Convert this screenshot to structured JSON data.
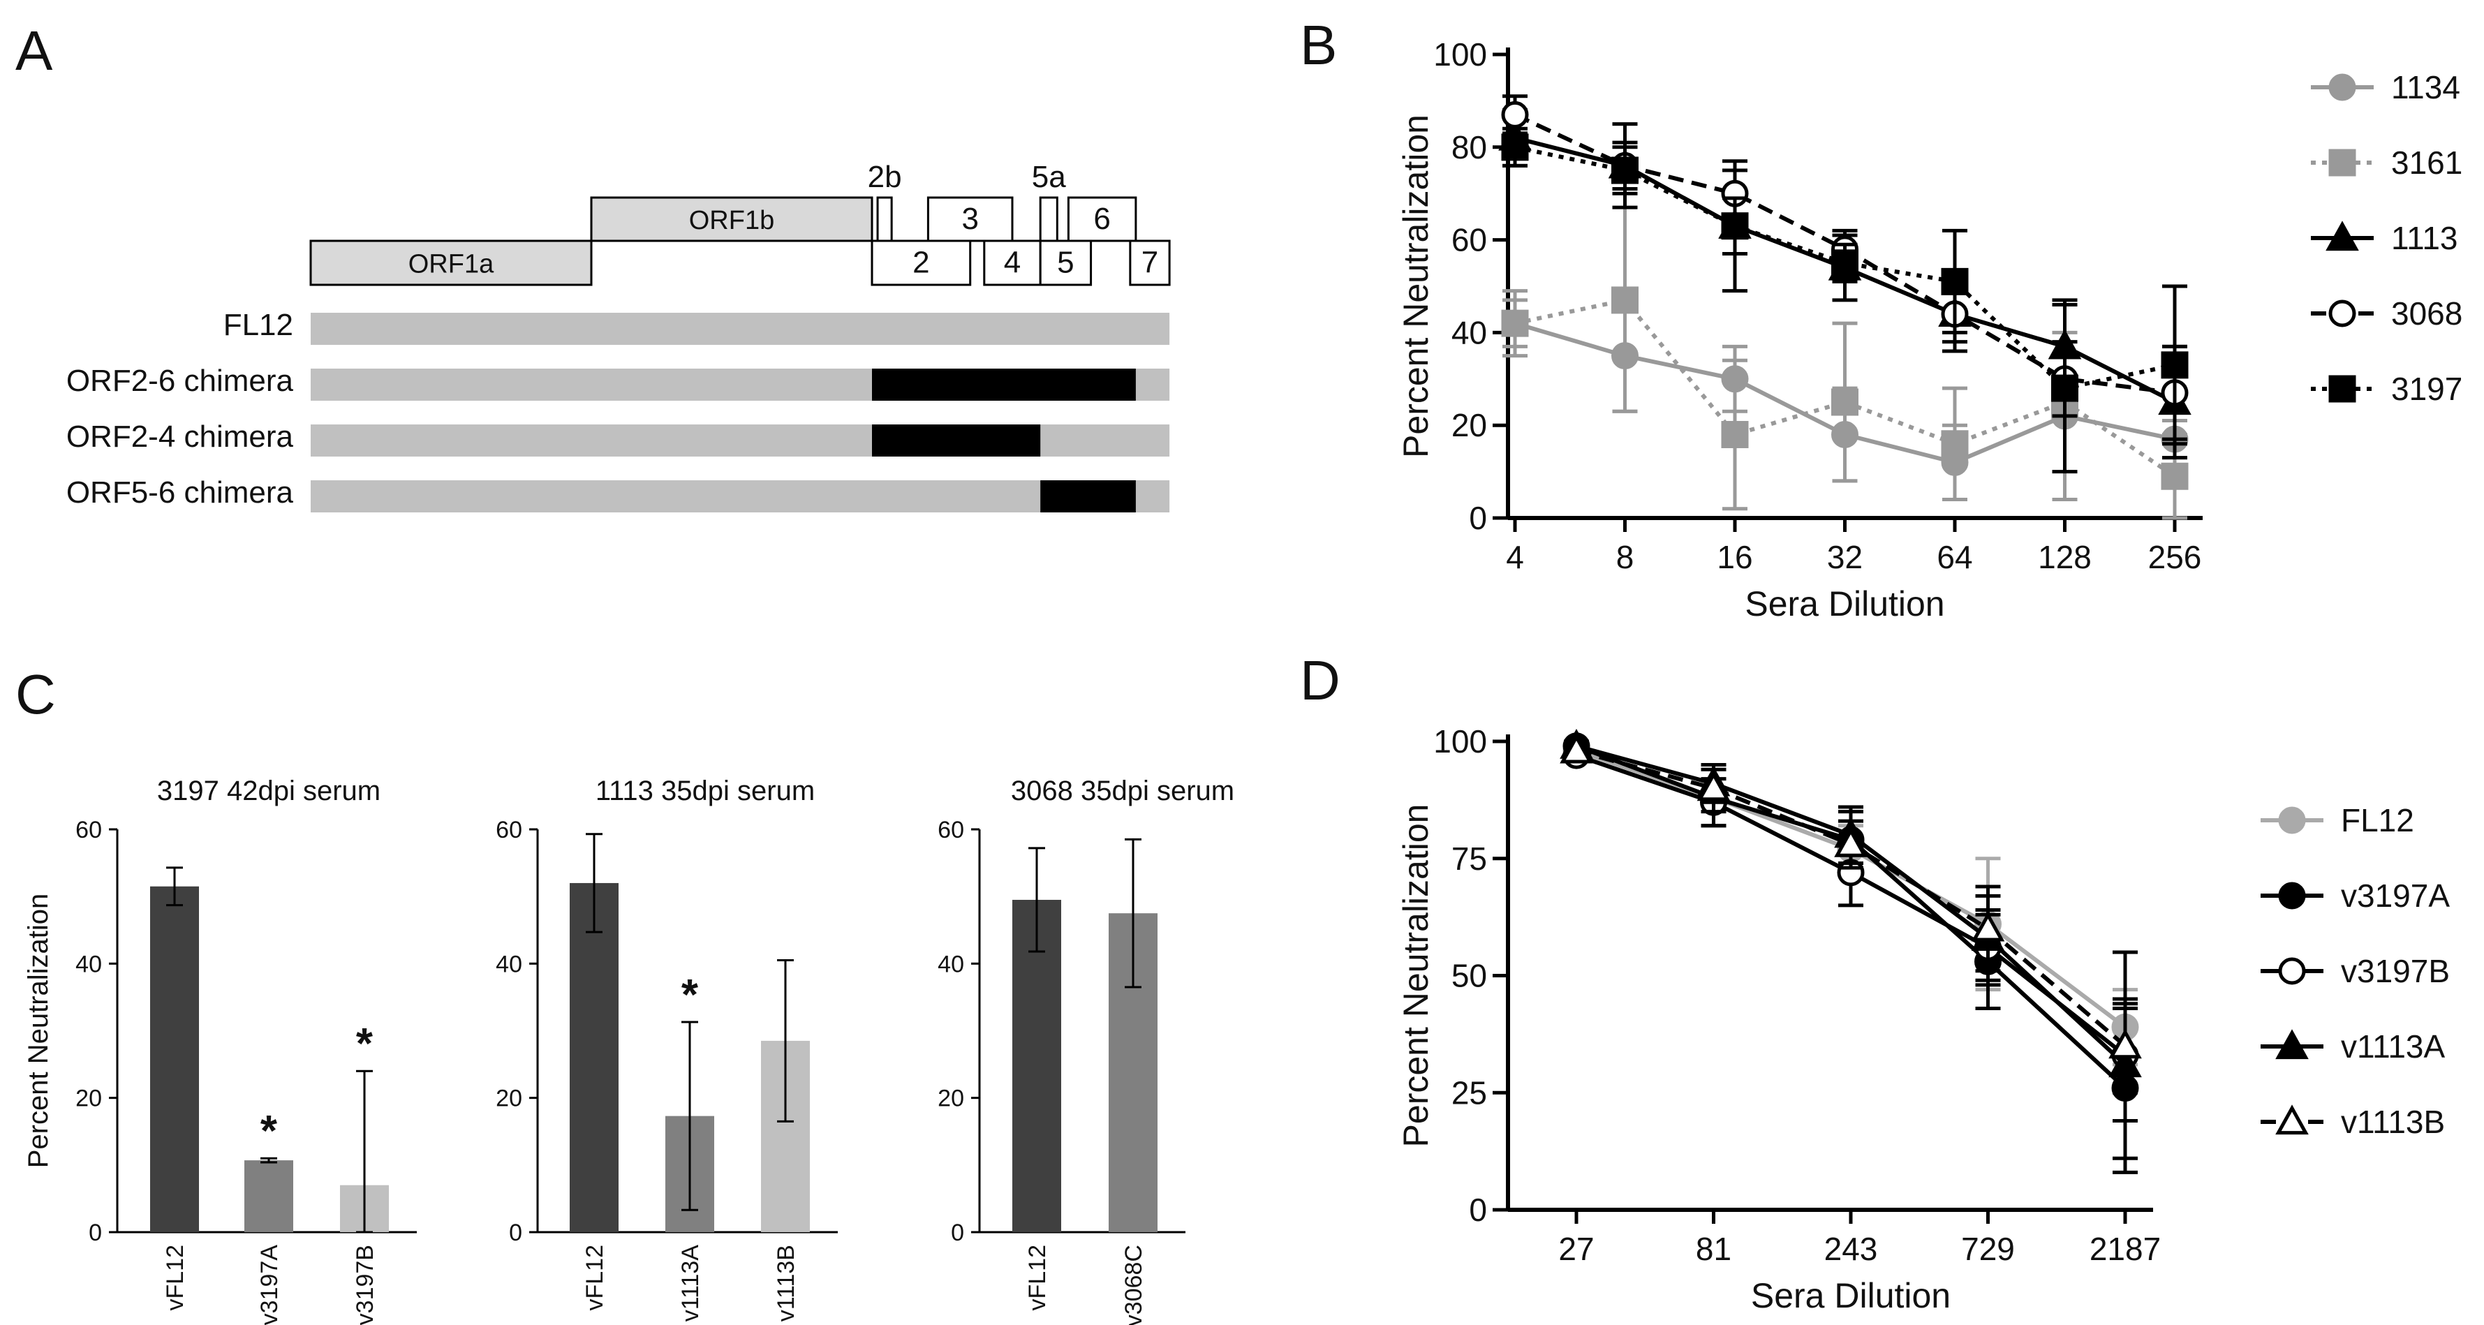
{
  "panels": {
    "A": {
      "letter": "A",
      "genome": [
        {
          "label": "ORF1a",
          "start": 0,
          "end": 1,
          "tier": "low",
          "fill": "#d9d9d9"
        },
        {
          "label": "ORF1b",
          "start": 1,
          "end": 2,
          "tier": "mid",
          "fill": "#d9d9d9"
        },
        {
          "label": "2b",
          "start": 2.02,
          "end": 2.07,
          "tier": "top",
          "fill": "#ffffff"
        },
        {
          "label": "2",
          "start": 2,
          "end": 2.35,
          "tier": "low",
          "fill": "#ffffff"
        },
        {
          "label": "3",
          "start": 2.2,
          "end": 2.5,
          "tier": "mid",
          "fill": "#ffffff"
        },
        {
          "label": "4",
          "start": 2.4,
          "end": 2.6,
          "tier": "low",
          "fill": "#ffffff"
        },
        {
          "label": "5a",
          "start": 2.6,
          "end": 2.66,
          "tier": "top",
          "fill": "#ffffff"
        },
        {
          "label": "5",
          "start": 2.6,
          "end": 2.78,
          "tier": "low",
          "fill": "#ffffff"
        },
        {
          "label": "6",
          "start": 2.7,
          "end": 2.94,
          "tier": "mid",
          "fill": "#ffffff"
        },
        {
          "label": "7",
          "start": 2.92,
          "end": 3.06,
          "tier": "low",
          "fill": "#ffffff"
        }
      ],
      "constructs": [
        {
          "label": "FL12",
          "black_start": null,
          "black_end": null
        },
        {
          "label": "ORF2-6 chimera",
          "black_start": 2.0,
          "black_end": 2.94
        },
        {
          "label": "ORF2-4 chimera",
          "black_start": 2.0,
          "black_end": 2.6
        },
        {
          "label": "ORF5-6 chimera",
          "black_start": 2.6,
          "black_end": 2.94
        }
      ],
      "colors": {
        "bar": "#c0c0c0",
        "chimera": "#000000"
      }
    },
    "B": {
      "letter": "B",
      "chart_data": {
        "type": "line",
        "x": [
          "4",
          "8",
          "16",
          "32",
          "64",
          "128",
          "256"
        ],
        "xlabel": "Sera Dilution",
        "ylabel": "Percent Neutralization",
        "ylim": [
          0,
          100
        ],
        "yticks": [
          "0",
          "20",
          "40",
          "60",
          "80",
          "100"
        ],
        "legend": "right",
        "series": [
          {
            "name": "1134",
            "values": [
              42,
              35,
              30,
              18,
              12,
              22,
              17
            ],
            "err": [
              7,
              12,
              7,
              10,
              8,
              18,
              4
            ],
            "color": "#999999",
            "marker": "circle",
            "filled": true,
            "dash": "solid"
          },
          {
            "name": "3161",
            "values": [
              42,
              47,
              18,
              25,
              16,
              25,
              9
            ],
            "err": [
              5,
              24,
              16,
              17,
              12,
              21,
              9
            ],
            "color": "#999999",
            "marker": "square",
            "filled": true,
            "dash": "dotted"
          },
          {
            "name": "1113",
            "values": [
              82,
              76,
              63,
              54,
              44,
              37,
              25
            ],
            "err": [
              6,
              9,
              14,
              7,
              8,
              10,
              12
            ],
            "color": "#000000",
            "marker": "triangle",
            "filled": true,
            "dash": "solid"
          },
          {
            "name": "3068",
            "values": [
              87,
              76,
              70,
              58,
              44,
              30,
              27
            ],
            "err": [
              4,
              5,
              5,
              4,
              6,
              8,
              10
            ],
            "color": "#000000",
            "marker": "circle",
            "filled": false,
            "dash": "dashed"
          },
          {
            "name": "3197",
            "values": [
              80,
              75,
              63,
              55,
              51,
              28,
              33
            ],
            "err": [
              4,
              5,
              6,
              4,
              11,
              18,
              17
            ],
            "color": "#000000",
            "marker": "square",
            "filled": true,
            "dash": "dotted"
          }
        ]
      }
    },
    "C": {
      "letter": "C",
      "chart_data": [
        {
          "type": "bar",
          "title": "3197 42dpi serum",
          "ylabel": "Percent  Neutralization",
          "ylim": [
            0,
            60
          ],
          "yticks": [
            "0",
            "20",
            "40",
            "60"
          ],
          "categories": [
            "vFL12",
            "v3197A",
            "v3197B"
          ],
          "values": [
            51.5,
            10.7,
            7
          ],
          "err": [
            2.8,
            0.3,
            17
          ],
          "significant": [
            false,
            true,
            true
          ],
          "colors": [
            "#404040",
            "#808080",
            "#c0c0c0"
          ]
        },
        {
          "type": "bar",
          "title": "1113 35dpi serum",
          "ylabel": "",
          "ylim": [
            0,
            60
          ],
          "yticks": [
            "0",
            "20",
            "40",
            "60"
          ],
          "categories": [
            "vFL12",
            "v1113A",
            "v1113B"
          ],
          "values": [
            52,
            17.3,
            28.5
          ],
          "err": [
            7.3,
            14,
            12
          ],
          "significant": [
            false,
            true,
            false
          ],
          "colors": [
            "#404040",
            "#808080",
            "#c0c0c0"
          ]
        },
        {
          "type": "bar",
          "title": "3068 35dpi serum",
          "ylabel": "",
          "ylim": [
            0,
            60
          ],
          "yticks": [
            "0",
            "20",
            "40",
            "60"
          ],
          "categories": [
            "vFL12",
            "v3068C"
          ],
          "values": [
            49.5,
            47.5
          ],
          "err": [
            7.7,
            11
          ],
          "significant": [
            false,
            false
          ],
          "colors": [
            "#404040",
            "#808080"
          ]
        }
      ],
      "star_symbol": "*"
    },
    "D": {
      "letter": "D",
      "chart_data": {
        "type": "line",
        "x": [
          "27",
          "81",
          "243",
          "729",
          "2187"
        ],
        "xlabel": "Sera Dilution",
        "ylabel": "Percent Neutralization",
        "ylim": [
          0,
          100
        ],
        "yticks": [
          "0",
          "25",
          "50",
          "75",
          "100"
        ],
        "legend": "right",
        "series": [
          {
            "name": "FL12",
            "values": [
              98,
              88,
              77,
              61,
              39
            ],
            "err": [
              1,
              6,
              5,
              14,
              8
            ],
            "color": "#aaaaaa",
            "marker": "circle",
            "filled": true,
            "dash": "solid"
          },
          {
            "name": "v3197A",
            "values": [
              99,
              88,
              79,
              53,
              26
            ],
            "err": [
              1,
              6,
              6,
              10,
              18
            ],
            "color": "#000000",
            "marker": "circle",
            "filled": true,
            "dash": "solid"
          },
          {
            "name": "v3197B",
            "values": [
              97,
              87,
              72,
              56,
              33
            ],
            "err": [
              1,
              5,
              7,
              8,
              22
            ],
            "color": "#000000",
            "marker": "circle",
            "filled": false,
            "dash": "solid"
          },
          {
            "name": "v1113A",
            "values": [
              99,
              91,
              80,
              58,
              31
            ],
            "err": [
              1,
              4,
              6,
              9,
              12
            ],
            "color": "#000000",
            "marker": "triangle",
            "filled": true,
            "dash": "solid"
          },
          {
            "name": "v1113B",
            "values": [
              98,
              90,
              78,
              60,
              35
            ],
            "err": [
              1,
              5,
              5,
              9,
              10
            ],
            "color": "#000000",
            "marker": "triangle",
            "filled": false,
            "dash": "dashed"
          }
        ]
      }
    }
  }
}
